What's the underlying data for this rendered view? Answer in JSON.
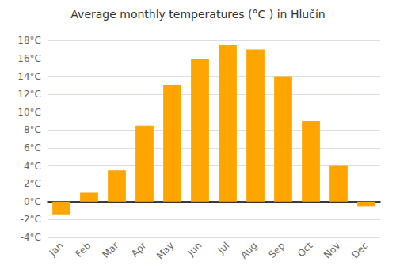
{
  "chart_data": {
    "type": "bar",
    "title": "Average monthly temperatures (°C ) in Hlučín",
    "categories": [
      "Jan",
      "Feb",
      "Mar",
      "Apr",
      "May",
      "Jun",
      "Jul",
      "Aug",
      "Sep",
      "Oct",
      "Nov",
      "Dec"
    ],
    "values": [
      -1.5,
      1.0,
      3.5,
      8.5,
      13.0,
      16.0,
      17.5,
      17.0,
      14.0,
      9.0,
      4.0,
      -0.5
    ],
    "color": "#FFA500",
    "ylim": [
      -4,
      19
    ],
    "yticks": [
      {
        "value": -4,
        "label": "-4°C"
      },
      {
        "value": -2,
        "label": "-2°C"
      },
      {
        "value": 0,
        "label": "0°C"
      },
      {
        "value": 2,
        "label": "2°C"
      },
      {
        "value": 4,
        "label": "4°C"
      },
      {
        "value": 6,
        "label": "6°C"
      },
      {
        "value": 8,
        "label": "8°C"
      },
      {
        "value": 10,
        "label": "10°C"
      },
      {
        "value": 12,
        "label": "12°C"
      },
      {
        "value": 14,
        "label": "14°C"
      },
      {
        "value": 16,
        "label": "16°C"
      },
      {
        "value": 18,
        "label": "18°C"
      }
    ],
    "grid": true
  }
}
